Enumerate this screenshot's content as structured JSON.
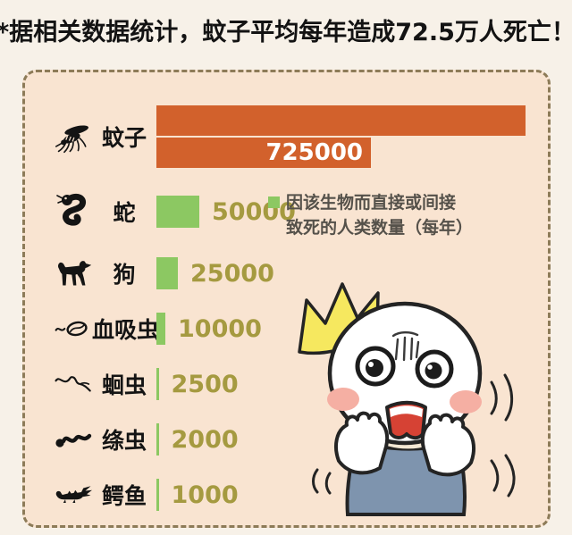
{
  "title": "*据相关数据统计，蚊子平均每年造成72.5万人死亡！",
  "panel": {
    "legend": {
      "lines": [
        "因该生物而直接或间接",
        "致死的人类数量（每年）"
      ]
    }
  },
  "chart_data": {
    "type": "bar",
    "orientation": "horizontal",
    "title": "*据相关数据统计，蚊子平均每年造成72.5万人死亡！",
    "legend": "因该生物而直接或间接致死的人类数量（每年）",
    "legend_position": "inside-right-of-snake-row",
    "categories": [
      "蚊子",
      "蛇",
      "狗",
      "血吸虫",
      "蛔虫",
      "绦虫",
      "鳄鱼"
    ],
    "values": [
      725000,
      50000,
      25000,
      10000,
      2500,
      2000,
      1000
    ],
    "value_labels": [
      "725000",
      "50000",
      "25000",
      "10000",
      "2500",
      "2000",
      "1000"
    ],
    "icons": [
      "mosquito-icon",
      "snake-icon",
      "dog-icon",
      "schistosome-icon",
      "roundworm-icon",
      "tapeworm-icon",
      "crocodile-icon"
    ],
    "highlight_category": "蚊子",
    "highlight_value_shown_inside_bar": true,
    "bar_wraps_to_second_line": true,
    "grid": false
  },
  "colors": {
    "outer_bg": "#f7f1e8",
    "panel_bg": "#f9e4d1",
    "panel_border": "#8d7b58",
    "highlight_bar": "#d2612c",
    "bar_green": "#8cc862",
    "value_text": "#a59a40",
    "value_on_bar": "#ffffff",
    "label_text": "#141414",
    "legend_text": "#55514a",
    "title_text": "#131313"
  },
  "character": {
    "shirt_color": "#7e94ae",
    "cheek_color": "#f5afa3",
    "starburst_color": "#f6e85f",
    "mouth_color": "#d64234",
    "outline_color": "#242424"
  }
}
